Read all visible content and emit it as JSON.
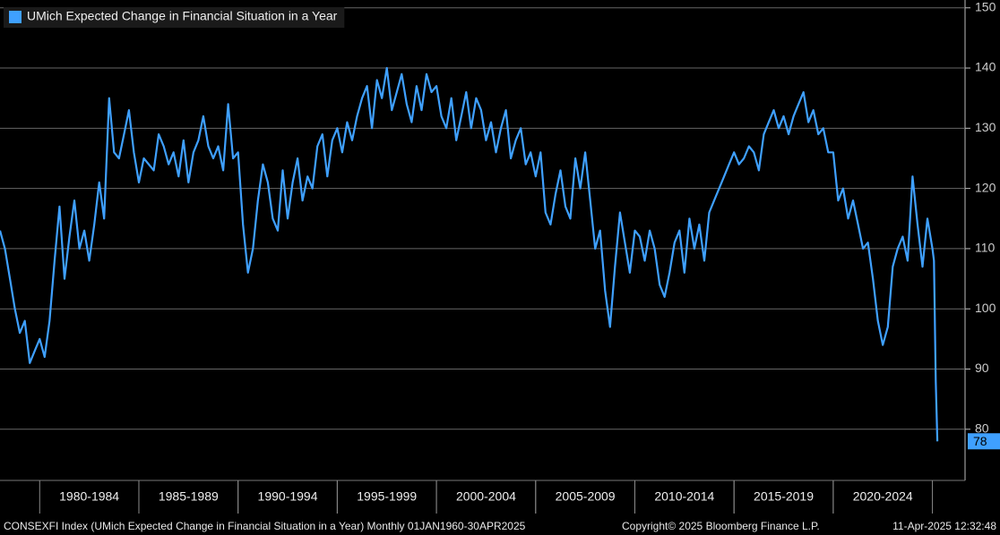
{
  "chart_data": {
    "type": "line",
    "series": [
      {
        "name": "UMich Expected Change in Financial Situation in a Year",
        "color": "#3fa0ff",
        "values": [
          113,
          110,
          105,
          100,
          96,
          98,
          91,
          93,
          95,
          92,
          98,
          108,
          117,
          105,
          112,
          118,
          110,
          113,
          108,
          114,
          121,
          115,
          135,
          126,
          125,
          129,
          133,
          126,
          121,
          125,
          124,
          123,
          129,
          127,
          124,
          126,
          122,
          128,
          121,
          126,
          128,
          132,
          127,
          125,
          127,
          123,
          134,
          125,
          126,
          114,
          106,
          110,
          118,
          124,
          121,
          115,
          113,
          123,
          115,
          121,
          125,
          118,
          122,
          120,
          127,
          129,
          122,
          128,
          130,
          126,
          131,
          128,
          132,
          135,
          137,
          130,
          138,
          135,
          140,
          133,
          136,
          139,
          134,
          131,
          137,
          133,
          139,
          136,
          137,
          132,
          130,
          135,
          128,
          132,
          136,
          130,
          135,
          133,
          128,
          131,
          126,
          130,
          133,
          125,
          128,
          130,
          124,
          126,
          122,
          126,
          116,
          114,
          119,
          123,
          117,
          115,
          125,
          120,
          126,
          118,
          110,
          113,
          103,
          97,
          107,
          116,
          111,
          106,
          113,
          112,
          108,
          113,
          110,
          104,
          102,
          106,
          111,
          113,
          106,
          115,
          110,
          114,
          108,
          116,
          118,
          120,
          122,
          124,
          126,
          124,
          125,
          127,
          126,
          123,
          129,
          131,
          133,
          130,
          132,
          129,
          132,
          134,
          136,
          131,
          133,
          129,
          130,
          126,
          126,
          118,
          120,
          115,
          118,
          114,
          110,
          111,
          105,
          98,
          94,
          97,
          107,
          110,
          112,
          108,
          122,
          114,
          107,
          115,
          110,
          108,
          88,
          78
        ]
      }
    ],
    "x": [
      1978,
      1978.25,
      1978.5,
      1978.75,
      1979,
      1979.25,
      1979.5,
      1979.75,
      1980,
      1980.25,
      1980.5,
      1980.75,
      1981,
      1981.25,
      1981.5,
      1981.75,
      1982,
      1982.25,
      1982.5,
      1982.75,
      1983,
      1983.25,
      1983.5,
      1983.75,
      1984,
      1984.25,
      1984.5,
      1984.75,
      1985,
      1985.25,
      1985.5,
      1985.75,
      1986,
      1986.25,
      1986.5,
      1986.75,
      1987,
      1987.25,
      1987.5,
      1987.75,
      1988,
      1988.25,
      1988.5,
      1988.75,
      1989,
      1989.25,
      1989.5,
      1989.75,
      1990,
      1990.25,
      1990.5,
      1990.75,
      1991,
      1991.25,
      1991.5,
      1991.75,
      1992,
      1992.25,
      1992.5,
      1992.75,
      1993,
      1993.25,
      1993.5,
      1993.75,
      1994,
      1994.25,
      1994.5,
      1994.75,
      1995,
      1995.25,
      1995.5,
      1995.75,
      1996,
      1996.25,
      1996.5,
      1996.75,
      1997,
      1997.25,
      1997.5,
      1997.75,
      1998,
      1998.25,
      1998.5,
      1998.75,
      1999,
      1999.25,
      1999.5,
      1999.75,
      2000,
      2000.25,
      2000.5,
      2000.75,
      2001,
      2001.25,
      2001.5,
      2001.75,
      2002,
      2002.25,
      2002.5,
      2002.75,
      2003,
      2003.25,
      2003.5,
      2003.75,
      2004,
      2004.25,
      2004.5,
      2004.75,
      2005,
      2005.25,
      2005.5,
      2005.75,
      2006,
      2006.25,
      2006.5,
      2006.75,
      2007,
      2007.25,
      2007.5,
      2007.75,
      2008,
      2008.25,
      2008.5,
      2008.75,
      2009,
      2009.25,
      2009.5,
      2009.75,
      2010,
      2010.25,
      2010.5,
      2010.75,
      2011,
      2011.25,
      2011.5,
      2011.75,
      2012,
      2012.25,
      2012.5,
      2012.75,
      2013,
      2013.25,
      2013.5,
      2013.75,
      2014,
      2014.25,
      2014.5,
      2014.75,
      2015,
      2015.25,
      2015.5,
      2015.75,
      2016,
      2016.25,
      2016.5,
      2016.75,
      2017,
      2017.25,
      2017.5,
      2017.75,
      2018,
      2018.25,
      2018.5,
      2018.75,
      2019,
      2019.25,
      2019.5,
      2019.75,
      2020,
      2020.25,
      2020.5,
      2020.75,
      2021,
      2021.25,
      2021.5,
      2021.75,
      2022,
      2022.25,
      2022.5,
      2022.75,
      2023,
      2023.25,
      2023.5,
      2023.75,
      2024,
      2024.25,
      2024.5,
      2024.75,
      2025,
      2025.08,
      2025.17,
      2025.25
    ],
    "xlim": [
      1978,
      2026.6
    ],
    "xticks": [
      {
        "value": 1982.5,
        "label": "1980-1984"
      },
      {
        "value": 1987.5,
        "label": "1985-1989"
      },
      {
        "value": 1992.5,
        "label": "1990-1994"
      },
      {
        "value": 1997.5,
        "label": "1995-1999"
      },
      {
        "value": 2002.5,
        "label": "2000-2004"
      },
      {
        "value": 2007.5,
        "label": "2005-2009"
      },
      {
        "value": 2012.5,
        "label": "2010-2014"
      },
      {
        "value": 2017.5,
        "label": "2015-2019"
      },
      {
        "value": 2022.5,
        "label": "2020-2024"
      }
    ],
    "ylim": [
      71.5,
      151.3
    ],
    "yticks": [
      80,
      90,
      100,
      110,
      120,
      130,
      140,
      150
    ],
    "grid": true,
    "legend": "top-left",
    "footer": {
      "left": "CONSEXFI Index (UMich Expected Change in Financial Situation in a Year)  Monthly 01JAN1960-30APR2025",
      "center": "Copyright© 2025 Bloomberg Finance L.P.",
      "right": "11-Apr-2025 12:32:48"
    }
  }
}
